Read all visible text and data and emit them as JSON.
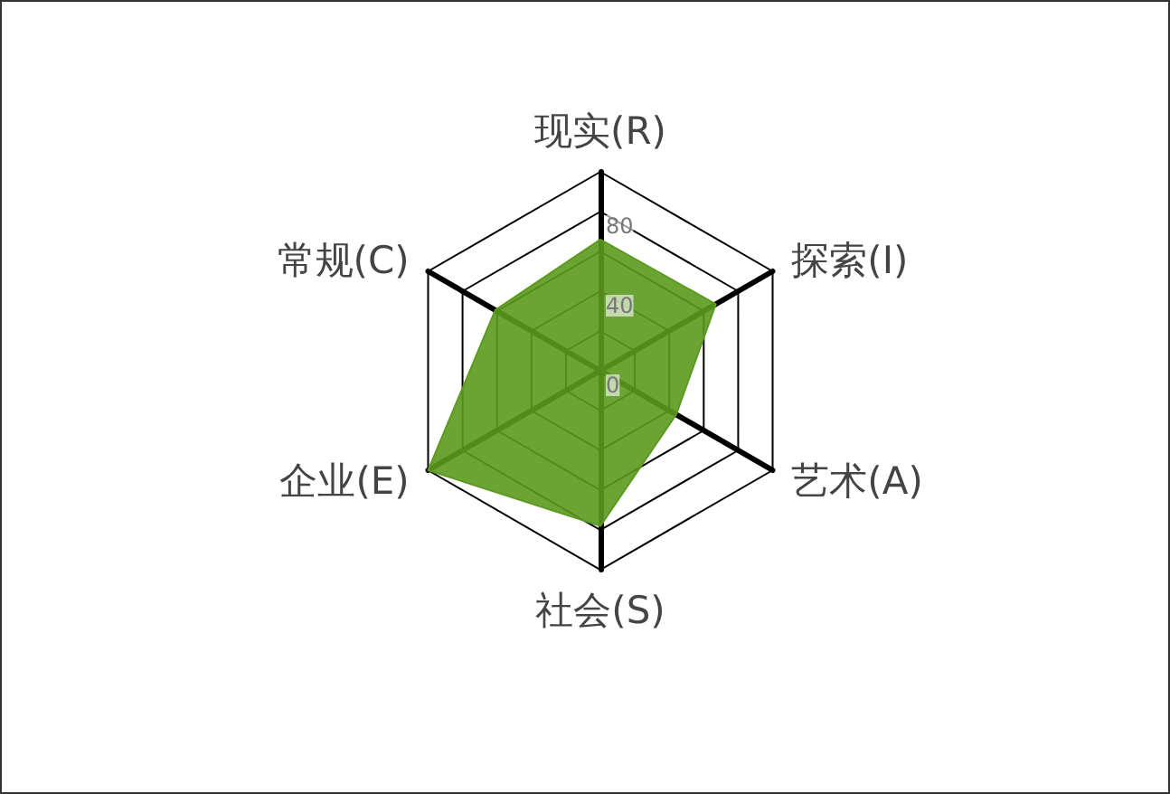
{
  "chart_data": {
    "type": "radar",
    "categories": [
      "现实(R)",
      "探索(I)",
      "艺术(A)",
      "社会(S)",
      "企业(E)",
      "常规(C)"
    ],
    "series": [
      {
        "color": "#5b9a1f",
        "values": [
          66,
          67,
          44,
          78,
          100,
          61
        ]
      }
    ],
    "ylim": [
      0,
      100
    ],
    "yticks": [
      0,
      40,
      80
    ]
  }
}
